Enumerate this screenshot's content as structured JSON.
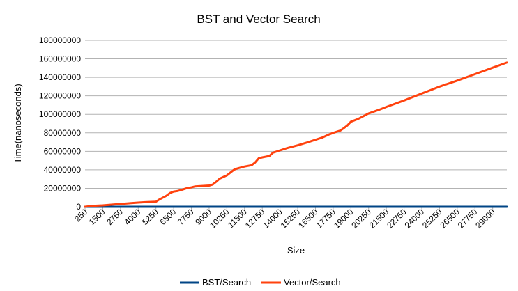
{
  "chart_data": {
    "type": "line",
    "title": "BST and Vector Search",
    "xlabel": "Size",
    "ylabel": "Time(nanoseconds)",
    "ylim": [
      0,
      180000000
    ],
    "yticks": [
      "0",
      "20000000",
      "40000000",
      "60000000",
      "80000000",
      "100000000",
      "120000000",
      "140000000",
      "160000000",
      "180000000"
    ],
    "x_tick_labels": [
      "250",
      "1500",
      "2750",
      "4000",
      "5250",
      "6500",
      "7750",
      "9000",
      "10250",
      "11500",
      "12750",
      "14000",
      "15250",
      "16500",
      "17750",
      "19000",
      "20250",
      "21500",
      "22750",
      "24000",
      "25250",
      "26500",
      "27750",
      "29000"
    ],
    "xlim": [
      250,
      30000
    ],
    "grid": true,
    "legend_position": "bottom",
    "series": [
      {
        "name": "BST/Search",
        "color": "#004586",
        "x": [
          250,
          30000
        ],
        "values": [
          0,
          0
        ]
      },
      {
        "name": "Vector/Search",
        "color": "#ff420e",
        "x": [
          250,
          750,
          1500,
          2250,
          2750,
          3500,
          4000,
          4500,
          5250,
          5500,
          6000,
          6250,
          6500,
          6750,
          7000,
          7500,
          7750,
          8000,
          8500,
          9000,
          9250,
          9500,
          9750,
          10250,
          10500,
          10750,
          11000,
          11250,
          11500,
          12000,
          12250,
          12500,
          12750,
          13250,
          13500,
          14000,
          14500,
          15250,
          16000,
          16500,
          17000,
          17500,
          17750,
          18250,
          18500,
          18750,
          19000,
          19500,
          20250,
          21000,
          21500,
          22750,
          24000,
          25250,
          26500,
          27750,
          29000,
          30000
        ],
        "values": [
          0,
          1000000,
          1500000,
          2500000,
          3000000,
          4000000,
          4500000,
          5000000,
          5500000,
          8000000,
          12000000,
          15000000,
          16500000,
          17000000,
          18000000,
          20500000,
          21000000,
          22000000,
          22500000,
          23000000,
          24000000,
          27000000,
          30500000,
          34000000,
          37000000,
          40000000,
          41500000,
          42500000,
          43500000,
          45000000,
          48000000,
          52500000,
          53500000,
          55000000,
          58500000,
          61000000,
          63500000,
          66500000,
          70000000,
          72500000,
          75000000,
          78500000,
          80000000,
          82500000,
          85000000,
          88000000,
          92000000,
          95000000,
          101000000,
          105000000,
          108000000,
          115000000,
          122500000,
          130000000,
          136500000,
          143500000,
          150500000,
          156000000
        ]
      }
    ]
  }
}
